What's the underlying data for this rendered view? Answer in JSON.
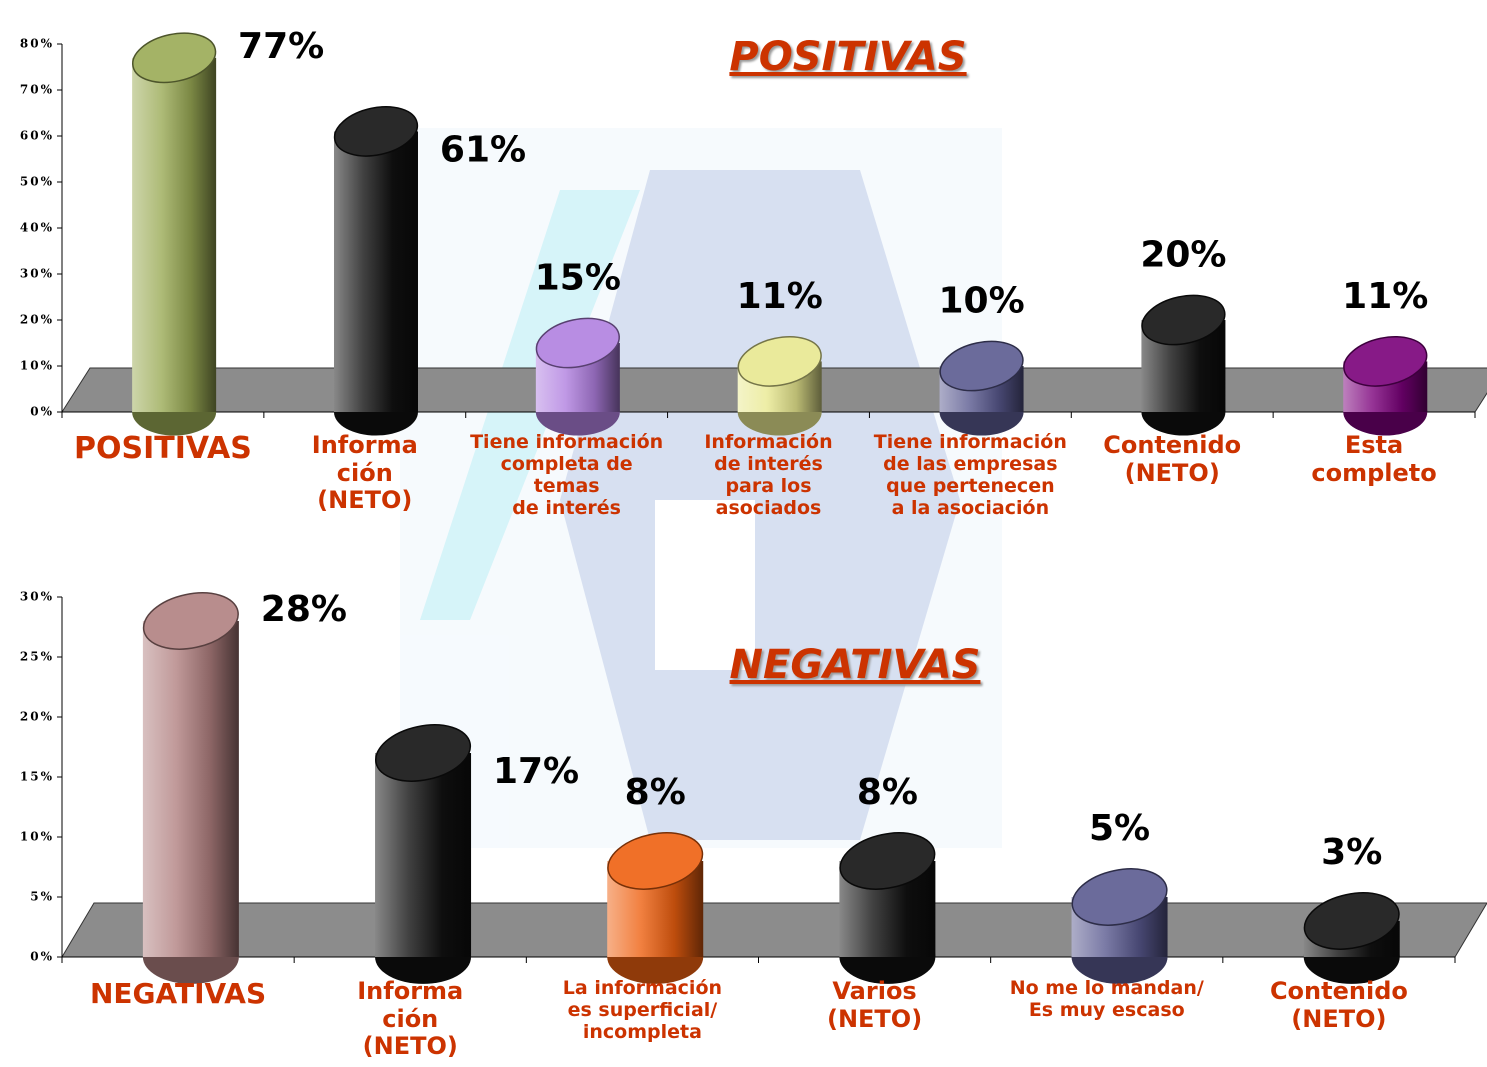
{
  "chart_data": [
    {
      "type": "bar",
      "title": "POSITIVAS",
      "categories": [
        "POSITIVAS",
        "Informa\nción\n(NETO)",
        "Tiene información\ncompleta de temas\nde interés",
        "Información\nde interés\npara los\nasociados",
        "Tiene información\nde las empresas\nque pertenecen\na la asociación",
        "Contenido\n(NETO)",
        "Esta\ncompleto"
      ],
      "values": [
        77,
        61,
        15,
        11,
        10,
        20,
        11
      ],
      "value_labels": [
        "77%",
        "61%",
        "15%",
        "11%",
        "10%",
        "20%",
        "11%"
      ],
      "colors": [
        "#9aaa55",
        "#111111",
        "#b080e0",
        "#e8e890",
        "#5a5a90",
        "#111111",
        "#7a007a"
      ],
      "ylim": [
        0,
        80
      ],
      "yticks": [
        {
          "value": 0,
          "label": "0%"
        },
        {
          "value": 10,
          "label": "10%"
        },
        {
          "value": 20,
          "label": "20%"
        },
        {
          "value": 30,
          "label": "30%"
        },
        {
          "value": 40,
          "label": "40%"
        },
        {
          "value": 50,
          "label": "50%"
        },
        {
          "value": 60,
          "label": "60%"
        },
        {
          "value": 70,
          "label": "70%"
        },
        {
          "value": 80,
          "label": "80%"
        }
      ]
    },
    {
      "type": "bar",
      "title": "NEGATIVAS",
      "categories": [
        "NEGATIVAS",
        "Informa\nción\n(NETO)",
        "La información\nes superficial/\nincompleta",
        "Varios\n(NETO)",
        "No me lo mandan/\nEs muy escaso",
        "Contenido\n(NETO)"
      ],
      "values": [
        28,
        17,
        8,
        8,
        5,
        3
      ],
      "value_labels": [
        "28%",
        "17%",
        "8%",
        "8%",
        "5%",
        "3%"
      ],
      "colors": [
        "#b08080",
        "#111111",
        "#ee6010",
        "#111111",
        "#5a5a90",
        "#111111"
      ],
      "ylim": [
        0,
        30
      ],
      "yticks": [
        {
          "value": 0,
          "label": "0%"
        },
        {
          "value": 5,
          "label": "5%"
        },
        {
          "value": 10,
          "label": "10%"
        },
        {
          "value": 15,
          "label": "15%"
        },
        {
          "value": 20,
          "label": "20%"
        },
        {
          "value": 25,
          "label": "25%"
        },
        {
          "value": 30,
          "label": "30%"
        }
      ]
    }
  ]
}
